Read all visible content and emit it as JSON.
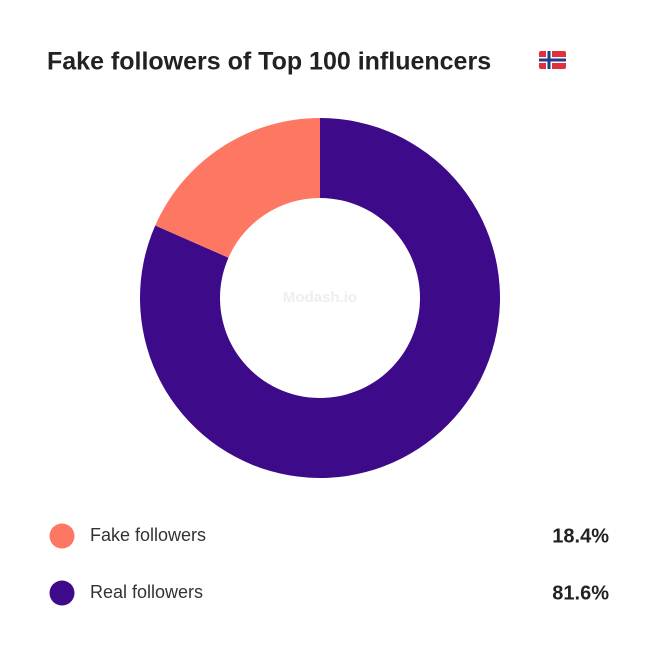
{
  "chart_data": {
    "type": "donut",
    "title": "Fake followers of Top 100 influencers",
    "watermark": "Modash.io",
    "categories": [
      "Fake followers",
      "Real followers"
    ],
    "values": [
      18.4,
      81.6
    ],
    "value_labels": [
      "18.4%",
      "81.6%"
    ],
    "colors": [
      "#fd7762",
      "#3d0a8a"
    ]
  }
}
